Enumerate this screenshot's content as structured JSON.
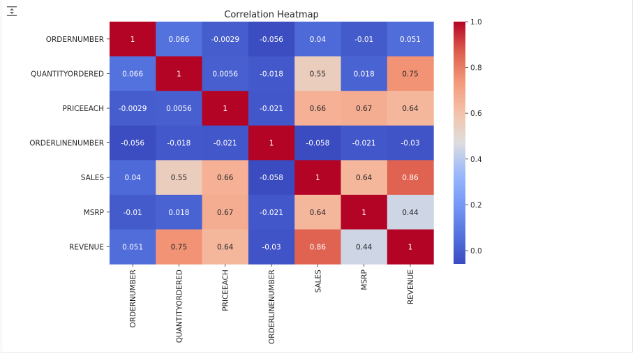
{
  "colors": {
    "cmap": "coolwarm",
    "low": "#3b4cc0",
    "mid": "#dddddd",
    "high": "#b40426",
    "text_dark": "#262626",
    "text_light": "#ffffff"
  },
  "icons": {
    "output_toggle": "output-scroll-icon"
  },
  "chart_data": {
    "type": "heatmap",
    "title": "Correlation Heatmap",
    "rows": [
      "ORDERNUMBER",
      "QUANTITYORDERED",
      "PRICEEACH",
      "ORDERLINENUMBER",
      "SALES",
      "MSRP",
      "REVENUE"
    ],
    "columns": [
      "ORDERNUMBER",
      "QUANTITYORDERED",
      "PRICEEACH",
      "ORDERLINENUMBER",
      "SALES",
      "MSRP",
      "REVENUE"
    ],
    "values": [
      [
        1,
        0.066,
        -0.0029,
        -0.056,
        0.04,
        -0.01,
        0.051
      ],
      [
        0.066,
        1,
        0.0056,
        -0.018,
        0.55,
        0.018,
        0.75
      ],
      [
        -0.0029,
        0.0056,
        1,
        -0.021,
        0.66,
        0.67,
        0.64
      ],
      [
        -0.056,
        -0.018,
        -0.021,
        1,
        -0.058,
        -0.021,
        -0.03
      ],
      [
        0.04,
        0.55,
        0.66,
        -0.058,
        1,
        0.64,
        0.86
      ],
      [
        -0.01,
        0.018,
        0.67,
        -0.021,
        0.64,
        1,
        0.44
      ],
      [
        0.051,
        0.75,
        0.64,
        -0.03,
        0.86,
        0.44,
        1
      ]
    ],
    "annotations": [
      [
        "1",
        "0.066",
        "-0.0029",
        "-0.056",
        "0.04",
        "-0.01",
        "0.051"
      ],
      [
        "0.066",
        "1",
        "0.0056",
        "-0.018",
        "0.55",
        "0.018",
        "0.75"
      ],
      [
        "-0.0029",
        "0.0056",
        "1",
        "-0.021",
        "0.66",
        "0.67",
        "0.64"
      ],
      [
        "-0.056",
        "-0.018",
        "-0.021",
        "1",
        "-0.058",
        "-0.021",
        "-0.03"
      ],
      [
        "0.04",
        "0.55",
        "0.66",
        "-0.058",
        "1",
        "0.64",
        "0.86"
      ],
      [
        "-0.01",
        "0.018",
        "0.67",
        "-0.021",
        "0.64",
        "1",
        "0.44"
      ],
      [
        "0.051",
        "0.75",
        "0.64",
        "-0.03",
        "0.86",
        "0.44",
        "1"
      ]
    ],
    "colorbar": {
      "vmin": -0.058,
      "vmax": 1,
      "ticks": [
        0.0,
        0.2,
        0.4,
        0.6,
        0.8,
        1.0
      ],
      "tick_labels": [
        "0.0",
        "0.2",
        "0.4",
        "0.6",
        "0.8",
        "1.0"
      ]
    }
  }
}
